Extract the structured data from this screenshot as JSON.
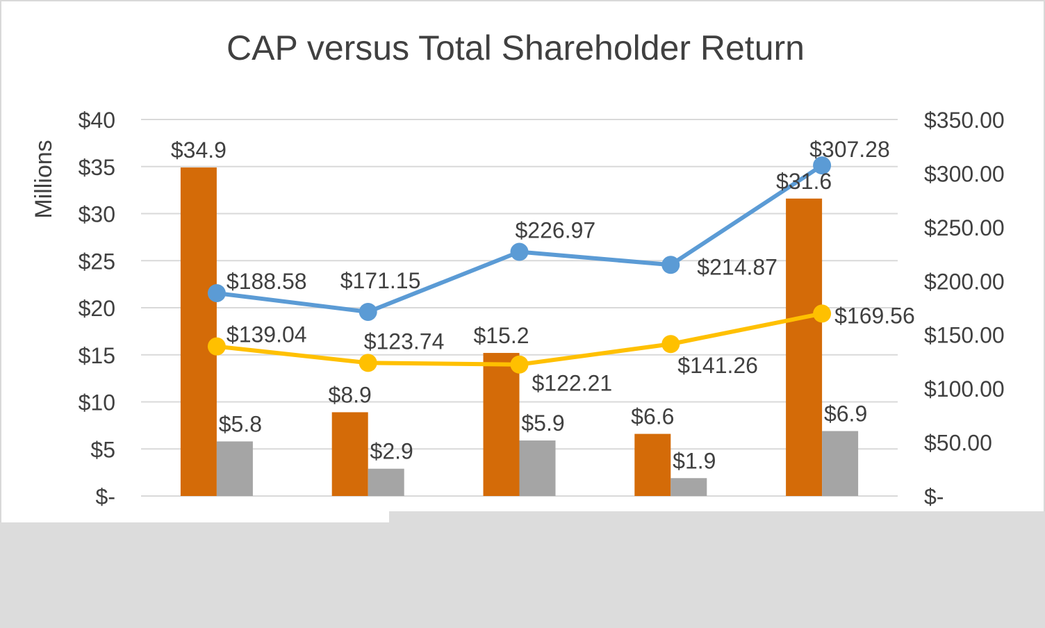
{
  "chart_data": {
    "type": "bar",
    "title": "CAP versus Total Shareholder Return",
    "ylabel": "Millions",
    "categories": [],
    "ylim": [
      0,
      40
    ],
    "y2lim": [
      0,
      350
    ],
    "y_ticks": [
      "$-",
      "$5",
      "$10",
      "$15",
      "$20",
      "$25",
      "$30",
      "$35",
      "$40"
    ],
    "y2_ticks": [
      "$-",
      "$50.00",
      "$100.00",
      "$150.00",
      "$200.00",
      "$250.00",
      "$300.00",
      "$350.00"
    ],
    "grid": true,
    "bar_series": [
      {
        "color": "#D46B08",
        "values": [
          34.9,
          8.9,
          15.2,
          6.6,
          31.6
        ],
        "labels": [
          "$34.9",
          "$8.9",
          "$15.2",
          "$6.6",
          "$31.6"
        ]
      },
      {
        "color": "#A5A5A5",
        "values": [
          5.8,
          2.9,
          5.9,
          1.9,
          6.9
        ],
        "labels": [
          "$5.8",
          "$2.9",
          "$5.9",
          "$1.9",
          "$6.9"
        ]
      }
    ],
    "line_series": [
      {
        "color": "#5B9BD5",
        "axis": "right",
        "values": [
          188.58,
          171.15,
          226.97,
          214.87,
          307.28
        ],
        "labels": [
          "$188.58",
          "$171.15",
          "$226.97",
          "$214.87",
          "$307.28"
        ]
      },
      {
        "color": "#FFC000",
        "axis": "right",
        "values": [
          139.04,
          123.74,
          122.21,
          141.26,
          169.56
        ],
        "labels": [
          "$139.04",
          "$123.74",
          "$122.21",
          "$141.26",
          "$169.56"
        ]
      }
    ],
    "occluder_color": "#DCDCDC"
  }
}
